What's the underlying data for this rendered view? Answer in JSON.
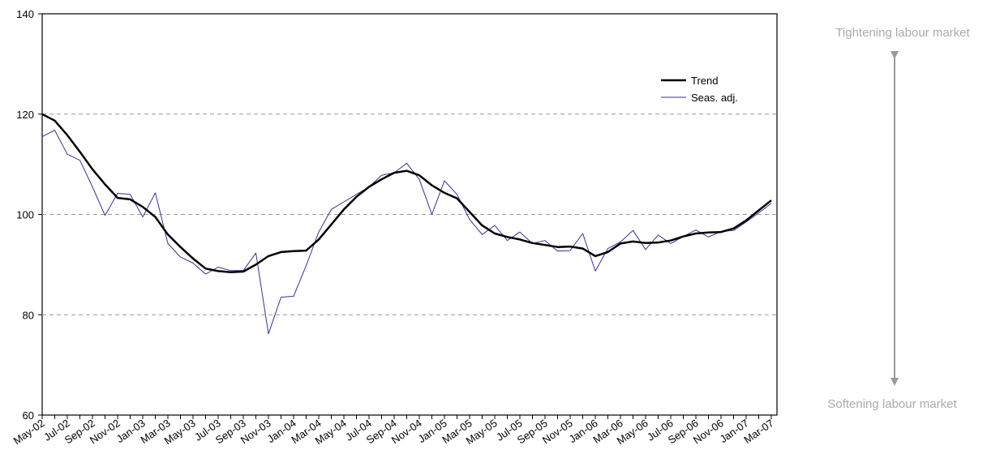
{
  "chart_data": {
    "type": "line",
    "categories": [
      "May-02",
      null,
      "Jul-02",
      null,
      "Sep-02",
      null,
      "Nov-02",
      null,
      "Jan-03",
      null,
      "Mar-03",
      null,
      "May-03",
      null,
      "Jul-03",
      null,
      "Sep-03",
      null,
      "Nov-03",
      null,
      "Jan-04",
      null,
      "Mar-04",
      null,
      "May-04",
      null,
      "Jul-04",
      null,
      "Sep-04",
      null,
      "Nov-04",
      null,
      "Jan-05",
      null,
      "Mar-05",
      null,
      "May-05",
      null,
      "Jul-05",
      null,
      "Sep-05",
      null,
      "Nov-05",
      null,
      "Jan-06",
      null,
      "Mar-06",
      null,
      "May-06",
      null,
      "Jul-06",
      null,
      "Sep-06",
      null,
      "Nov-06",
      null,
      "Jan-07",
      null,
      "Mar-07"
    ],
    "series": [
      {
        "name": "Trend",
        "color": "#000000",
        "width": 2.5,
        "values": [
          120,
          118.7,
          115.8,
          112.5,
          109,
          106,
          103.3,
          103,
          101.5,
          99.5,
          96,
          93.5,
          91.2,
          89.2,
          88.7,
          88.5,
          88.6,
          90,
          91.7,
          92.5,
          92.7,
          92.8,
          95,
          98,
          101,
          103.5,
          105.5,
          107,
          108.3,
          108.7,
          107.8,
          105.8,
          104.3,
          103.2,
          100.5,
          97.8,
          96.2,
          95.5,
          95,
          94.3,
          93.9,
          93.5,
          93.6,
          93.2,
          91.7,
          92.5,
          94.2,
          94.6,
          94.3,
          94.4,
          94.8,
          95.6,
          96.2,
          96.4,
          96.5,
          97.2,
          98.8,
          100.8,
          102.8
        ]
      },
      {
        "name": "Seas. adj.",
        "color": "#333399",
        "width": 1,
        "values": [
          115.5,
          116.8,
          112,
          110.8,
          105.5,
          99.8,
          104.2,
          104,
          99.5,
          104.3,
          94.2,
          91.5,
          90.3,
          88.1,
          89.5,
          88.8,
          88.8,
          92.3,
          76.2,
          83.5,
          83.7,
          89.8,
          96.5,
          101,
          102.5,
          104,
          105.5,
          107.8,
          108.3,
          110.2,
          107,
          100,
          106.7,
          104,
          99,
          96,
          97.8,
          94.8,
          96.5,
          94.2,
          94.8,
          92.7,
          92.8,
          96.2,
          88.7,
          93.2,
          94.5,
          96.8,
          93,
          95.9,
          94.2,
          95.6,
          96.9,
          95.5,
          96.6,
          96.8,
          98.5,
          100.3,
          102.2
        ]
      }
    ],
    "ylim": [
      60,
      140
    ],
    "yticks": [
      60,
      80,
      100,
      120,
      140
    ],
    "grid": true,
    "legend": "upper right",
    "annotations": [
      "Tightening labour market",
      "Softening labour market"
    ]
  }
}
